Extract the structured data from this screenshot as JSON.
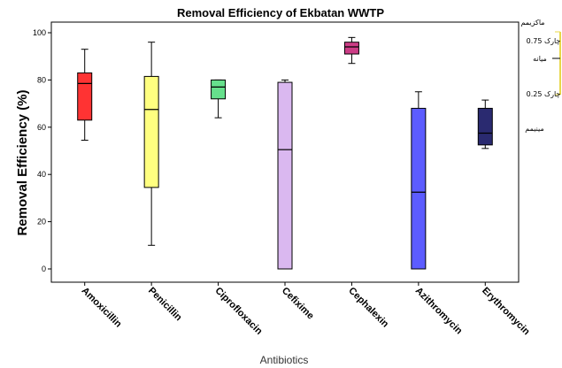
{
  "chart_data": {
    "type": "box",
    "title": "Removal Efficiency of Ekbatan WWTP",
    "ylabel": "Removal Efficiency (%)",
    "xlabel": "Antibiotics",
    "ylim": [
      -5,
      105
    ],
    "yticks": [
      0,
      20,
      40,
      60,
      80,
      100
    ],
    "grid": false,
    "categories": [
      "Amoxicillin",
      "Penicillin",
      "Ciprofloxacin",
      "Cefixime",
      "Cephalexin",
      "Azithromycin",
      "Erythromycin"
    ],
    "boxes": [
      {
        "name": "Amoxicillin",
        "min": 54.5,
        "q1": 63,
        "median": 78.5,
        "q3": 83,
        "max": 93,
        "color": "#ff3333"
      },
      {
        "name": "Penicillin",
        "min": 10,
        "q1": 34.5,
        "median": 67.5,
        "q3": 81.5,
        "max": 96,
        "color": "#ffff80"
      },
      {
        "name": "Ciprofloxacin",
        "min": 64,
        "q1": 72,
        "median": 77,
        "q3": 80,
        "max": 80,
        "color": "#66e08c"
      },
      {
        "name": "Cefixime",
        "min": 0,
        "q1": 0,
        "median": 50.5,
        "q3": 79,
        "max": 80,
        "color": "#dab8f0"
      },
      {
        "name": "Cephalexin",
        "min": 87,
        "q1": 91,
        "median": 94,
        "q3": 96,
        "max": 98,
        "color": "#cc3d86"
      },
      {
        "name": "Azithromycin",
        "min": 0,
        "q1": 0,
        "median": 32.5,
        "q3": 68,
        "max": 75,
        "color": "#5c5cff"
      },
      {
        "name": "Erythromycin",
        "min": 51,
        "q1": 52.5,
        "median": 57.5,
        "q3": 68,
        "max": 71.5,
        "color": "#2a2a70"
      }
    ],
    "legend": {
      "placement": "right",
      "items": [
        "ماکزیمم",
        "چارک 0.75",
        "میانه",
        "چارک 0.25",
        "مینیمم"
      ],
      "color": "#e8d84a"
    }
  }
}
